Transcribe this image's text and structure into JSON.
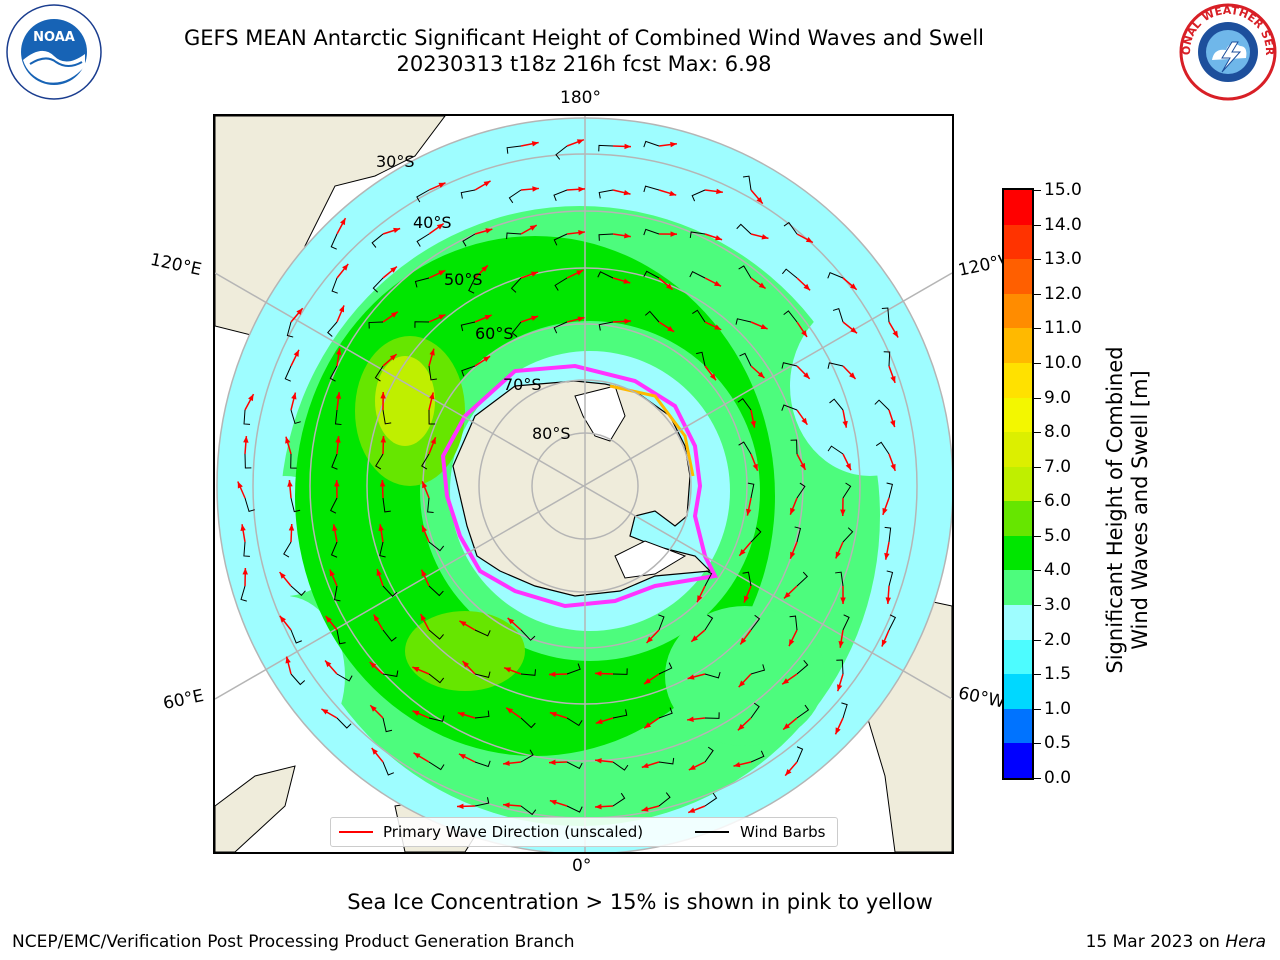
{
  "header": {
    "title_line1": "GEFS MEAN Antarctic Significant Height of Combined Wind Waves and Swell",
    "title_line2": "20230313 t18z 216h fcst   Max: 6.98"
  },
  "logos": {
    "left": {
      "icon": "noaa-logo",
      "text": "NOAA"
    },
    "right": {
      "icon": "nws-logo",
      "text": "NATIONAL WEATHER SERVICE"
    }
  },
  "map": {
    "projection": "south-polar-stereographic",
    "longitude_labels": {
      "top": "180°",
      "bottom": "0°",
      "upper_left": "120°E",
      "upper_right": "120°W",
      "lower_left": "60°E",
      "lower_right": "60°W"
    },
    "latitude_labels": [
      "30°S",
      "40°S",
      "50°S",
      "60°S",
      "70°S",
      "80°S"
    ],
    "colors": {
      "land": "#efecdb",
      "grid": "#b5b5b5",
      "ice_edge": "#ff33ff",
      "wave_arrow": "#ff0000",
      "wind_barb": "#000000"
    }
  },
  "colorbar": {
    "label_line1": "Significant Height of Combined",
    "label_line2": "Wind Waves and Swell [m]",
    "ticks": [
      "0.0",
      "0.5",
      "1.0",
      "1.5",
      "2.0",
      "3.0",
      "4.0",
      "5.0",
      "6.0",
      "7.0",
      "8.0",
      "9.0",
      "10.0",
      "11.0",
      "12.0",
      "13.0",
      "14.0",
      "15.0"
    ],
    "colors": [
      "#0000ff",
      "#0073ff",
      "#00d8ff",
      "#4dfcff",
      "#9efdff",
      "#4dfc7d",
      "#00e600",
      "#66e600",
      "#bfef00",
      "#dcef00",
      "#f3f700",
      "#ffe100",
      "#ffb900",
      "#ff8c00",
      "#ff5f00",
      "#ff3300",
      "#ff0000"
    ]
  },
  "legend": {
    "primary_wave": "Primary Wave Direction (unscaled)",
    "wind_barbs": "Wind Barbs"
  },
  "caption": "Sea Ice Concentration > 15% is shown in pink to yellow",
  "footer": {
    "left": "NCEP/EMC/Verification Post Processing Product Generation Branch",
    "right_date": "15 Mar 2023 on ",
    "right_host": "Hera"
  }
}
